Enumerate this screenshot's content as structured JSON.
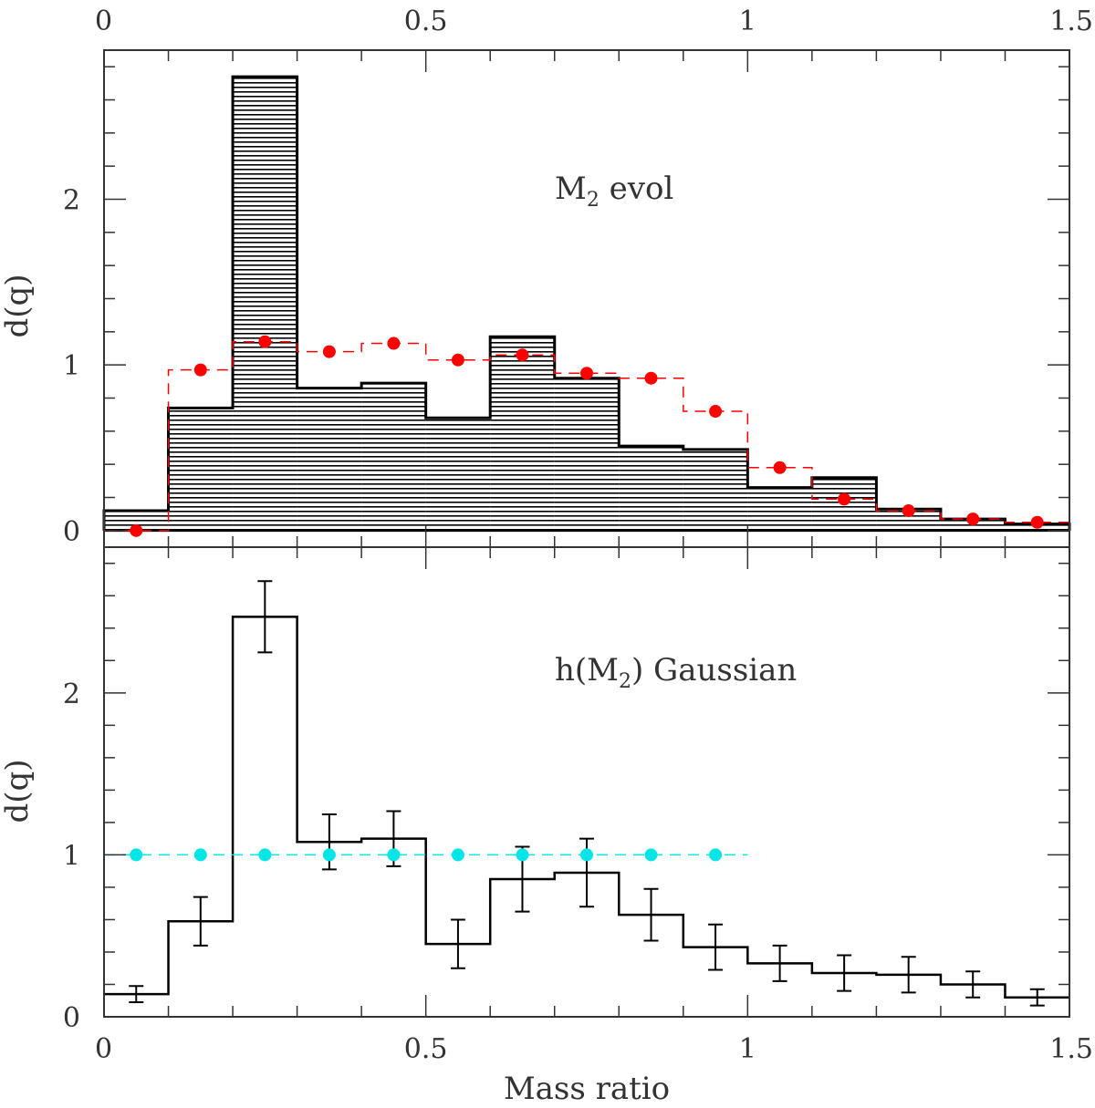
{
  "chart_data": [
    {
      "type": "bar",
      "panel": "top",
      "title": "",
      "annotation": {
        "main": "M",
        "sub": "2",
        "rest": " evol"
      },
      "xlabel": "",
      "ylabel": "d(q)",
      "xlim": [
        0,
        1.5
      ],
      "ylim": [
        -0.1,
        2.9
      ],
      "x_ticks": [
        0,
        0.5,
        1,
        1.5
      ],
      "x_tick_labels": [
        "0",
        "0.5",
        "1",
        "1.5"
      ],
      "y_ticks": [
        0,
        1,
        2
      ],
      "y_tick_labels": [
        "0",
        "1",
        "2"
      ],
      "bin_edges": [
        0,
        0.1,
        0.2,
        0.3,
        0.4,
        0.5,
        0.6,
        0.7,
        0.8,
        0.9,
        1.0,
        1.1,
        1.2,
        1.3,
        1.4,
        1.5
      ],
      "series": [
        {
          "name": "observed (hatched histogram)",
          "style": "hatched-step",
          "color": "#000000",
          "values": [
            0.12,
            0.74,
            2.74,
            0.86,
            0.89,
            0.68,
            1.17,
            0.92,
            0.51,
            0.49,
            0.26,
            0.32,
            0.13,
            0.07,
            0.04
          ]
        },
        {
          "name": "model (red dashed step with points)",
          "style": "dashed-step-points",
          "color": "#ff0000",
          "values": [
            0.0,
            0.97,
            1.14,
            1.08,
            1.13,
            1.03,
            1.06,
            0.95,
            0.92,
            0.72,
            0.38,
            0.19,
            0.12,
            0.07,
            0.05
          ]
        }
      ]
    },
    {
      "type": "bar",
      "panel": "bottom",
      "title": "",
      "annotation": {
        "main": "h(M",
        "sub": "2",
        "rest": ") Gaussian"
      },
      "xlabel": "Mass ratio",
      "ylabel": "d(q)",
      "xlim": [
        0,
        1.5
      ],
      "ylim": [
        0,
        2.9
      ],
      "x_ticks": [
        0,
        0.5,
        1,
        1.5
      ],
      "x_tick_labels": [
        "0",
        "0.5",
        "1",
        "1.5"
      ],
      "y_ticks": [
        0,
        1,
        2
      ],
      "y_tick_labels": [
        "0",
        "1",
        "2"
      ],
      "bin_edges": [
        0,
        0.1,
        0.2,
        0.3,
        0.4,
        0.5,
        0.6,
        0.7,
        0.8,
        0.9,
        1.0,
        1.1,
        1.2,
        1.3,
        1.4,
        1.5
      ],
      "series": [
        {
          "name": "reconstructed distribution (step with error bars)",
          "style": "step-errorbars",
          "color": "#000000",
          "values": [
            0.14,
            0.59,
            2.47,
            1.08,
            1.1,
            0.45,
            0.85,
            0.89,
            0.63,
            0.43,
            0.33,
            0.27,
            0.26,
            0.2,
            0.12
          ],
          "errors": [
            0.05,
            0.15,
            0.22,
            0.17,
            0.17,
            0.15,
            0.2,
            0.21,
            0.16,
            0.14,
            0.11,
            0.11,
            0.11,
            0.08,
            0.05
          ]
        },
        {
          "name": "flat input (cyan dashed with points)",
          "style": "dashed-points",
          "color": "#00e5e5",
          "x": [
            0.05,
            0.15,
            0.25,
            0.35,
            0.45,
            0.55,
            0.65,
            0.75,
            0.85,
            0.95
          ],
          "values": [
            1,
            1,
            1,
            1,
            1,
            1,
            1,
            1,
            1,
            1
          ]
        }
      ]
    }
  ]
}
